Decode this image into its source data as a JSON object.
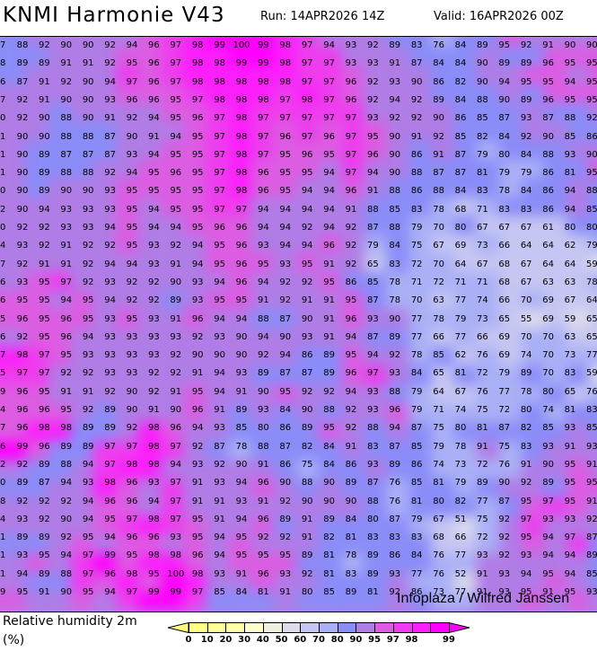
{
  "header": {
    "title": "KNMI Harmonie V43",
    "run": "Run: 14APR2026 14Z",
    "valid": "Valid: 16APR2026 00Z"
  },
  "map": {
    "variable": "Relative humidity 2m",
    "unit": "(%)",
    "watermark": "Infoplaza / Wilfred Janssen",
    "grid": [
      [
        "7",
        "88",
        "92",
        "90",
        "90",
        "92",
        "94",
        "96",
        "97",
        "98",
        "99",
        "100",
        "99",
        "98",
        "97",
        "94",
        "93",
        "92",
        "89",
        "83",
        "76",
        "84",
        "89",
        "95",
        "92",
        "91",
        "90",
        "90"
      ],
      [
        "8",
        "89",
        "89",
        "91",
        "91",
        "92",
        "95",
        "96",
        "97",
        "98",
        "98",
        "99",
        "99",
        "98",
        "97",
        "97",
        "93",
        "93",
        "91",
        "87",
        "84",
        "84",
        "90",
        "89",
        "89",
        "96",
        "95",
        "95"
      ],
      [
        "6",
        "87",
        "91",
        "92",
        "90",
        "94",
        "97",
        "96",
        "97",
        "98",
        "98",
        "98",
        "98",
        "98",
        "97",
        "97",
        "96",
        "92",
        "93",
        "90",
        "86",
        "82",
        "90",
        "94",
        "95",
        "95",
        "94",
        "95"
      ],
      [
        "7",
        "92",
        "91",
        "90",
        "90",
        "93",
        "96",
        "96",
        "95",
        "97",
        "98",
        "98",
        "98",
        "97",
        "98",
        "97",
        "96",
        "92",
        "94",
        "92",
        "89",
        "84",
        "88",
        "90",
        "89",
        "96",
        "95",
        "95"
      ],
      [
        "0",
        "92",
        "90",
        "88",
        "90",
        "91",
        "92",
        "94",
        "95",
        "96",
        "97",
        "98",
        "97",
        "97",
        "97",
        "97",
        "97",
        "93",
        "92",
        "92",
        "90",
        "86",
        "85",
        "87",
        "93",
        "87",
        "88",
        "92"
      ],
      [
        "1",
        "90",
        "90",
        "88",
        "88",
        "87",
        "90",
        "91",
        "94",
        "95",
        "97",
        "98",
        "97",
        "96",
        "97",
        "96",
        "97",
        "95",
        "90",
        "91",
        "92",
        "85",
        "82",
        "84",
        "92",
        "90",
        "85",
        "86"
      ],
      [
        "1",
        "90",
        "89",
        "87",
        "87",
        "87",
        "93",
        "94",
        "95",
        "95",
        "97",
        "98",
        "97",
        "95",
        "96",
        "95",
        "97",
        "96",
        "90",
        "86",
        "91",
        "87",
        "79",
        "80",
        "84",
        "88",
        "93",
        "90"
      ],
      [
        "1",
        "90",
        "89",
        "88",
        "88",
        "92",
        "94",
        "95",
        "96",
        "95",
        "97",
        "98",
        "96",
        "95",
        "95",
        "94",
        "97",
        "94",
        "90",
        "88",
        "87",
        "87",
        "81",
        "79",
        "79",
        "86",
        "81",
        "95"
      ],
      [
        "0",
        "90",
        "89",
        "90",
        "90",
        "93",
        "95",
        "95",
        "95",
        "95",
        "97",
        "98",
        "96",
        "95",
        "94",
        "94",
        "96",
        "91",
        "88",
        "86",
        "88",
        "84",
        "83",
        "78",
        "84",
        "86",
        "94",
        "88"
      ],
      [
        "2",
        "90",
        "94",
        "93",
        "93",
        "93",
        "95",
        "94",
        "95",
        "95",
        "97",
        "97",
        "94",
        "94",
        "94",
        "94",
        "91",
        "88",
        "85",
        "83",
        "78",
        "68",
        "71",
        "83",
        "83",
        "86",
        "94",
        "85"
      ],
      [
        "0",
        "92",
        "92",
        "93",
        "93",
        "94",
        "95",
        "94",
        "94",
        "95",
        "96",
        "96",
        "94",
        "94",
        "92",
        "94",
        "92",
        "87",
        "88",
        "79",
        "70",
        "80",
        "67",
        "67",
        "67",
        "61",
        "80",
        "80"
      ],
      [
        "4",
        "93",
        "92",
        "91",
        "92",
        "92",
        "95",
        "93",
        "92",
        "94",
        "95",
        "96",
        "93",
        "94",
        "94",
        "96",
        "92",
        "79",
        "84",
        "75",
        "67",
        "69",
        "73",
        "66",
        "64",
        "64",
        "62",
        "79"
      ],
      [
        "7",
        "92",
        "91",
        "91",
        "92",
        "94",
        "94",
        "93",
        "91",
        "94",
        "95",
        "96",
        "95",
        "93",
        "95",
        "91",
        "92",
        "65",
        "83",
        "72",
        "70",
        "64",
        "67",
        "68",
        "67",
        "64",
        "64",
        "59"
      ],
      [
        "6",
        "93",
        "95",
        "97",
        "92",
        "93",
        "92",
        "92",
        "90",
        "93",
        "94",
        "96",
        "94",
        "92",
        "92",
        "95",
        "86",
        "85",
        "78",
        "71",
        "72",
        "71",
        "71",
        "68",
        "67",
        "63",
        "63",
        "78"
      ],
      [
        "6",
        "95",
        "95",
        "94",
        "95",
        "94",
        "92",
        "92",
        "89",
        "93",
        "95",
        "95",
        "91",
        "92",
        "91",
        "91",
        "95",
        "87",
        "78",
        "70",
        "63",
        "77",
        "74",
        "66",
        "70",
        "69",
        "67",
        "64"
      ],
      [
        "5",
        "96",
        "95",
        "96",
        "95",
        "93",
        "95",
        "93",
        "91",
        "96",
        "94",
        "94",
        "88",
        "87",
        "90",
        "91",
        "96",
        "93",
        "90",
        "77",
        "78",
        "79",
        "73",
        "65",
        "55",
        "69",
        "59",
        "65"
      ],
      [
        "6",
        "92",
        "95",
        "96",
        "94",
        "93",
        "93",
        "93",
        "93",
        "92",
        "93",
        "90",
        "94",
        "90",
        "93",
        "91",
        "94",
        "87",
        "89",
        "77",
        "66",
        "77",
        "66",
        "69",
        "70",
        "70",
        "63",
        "65"
      ],
      [
        "7",
        "98",
        "97",
        "95",
        "93",
        "93",
        "93",
        "93",
        "92",
        "90",
        "90",
        "90",
        "92",
        "94",
        "86",
        "89",
        "95",
        "94",
        "92",
        "78",
        "85",
        "62",
        "76",
        "69",
        "74",
        "70",
        "73",
        "77"
      ],
      [
        "5",
        "97",
        "97",
        "92",
        "92",
        "93",
        "93",
        "92",
        "92",
        "91",
        "94",
        "93",
        "89",
        "87",
        "87",
        "89",
        "96",
        "97",
        "93",
        "84",
        "65",
        "81",
        "72",
        "79",
        "89",
        "70",
        "83",
        "59"
      ],
      [
        "9",
        "96",
        "95",
        "91",
        "91",
        "92",
        "90",
        "92",
        "91",
        "95",
        "94",
        "91",
        "90",
        "95",
        "92",
        "92",
        "94",
        "93",
        "88",
        "79",
        "64",
        "67",
        "76",
        "77",
        "78",
        "80",
        "65",
        "76"
      ],
      [
        "4",
        "96",
        "96",
        "95",
        "92",
        "89",
        "90",
        "91",
        "90",
        "96",
        "91",
        "89",
        "93",
        "84",
        "90",
        "88",
        "92",
        "93",
        "96",
        "79",
        "71",
        "74",
        "75",
        "72",
        "80",
        "74",
        "81",
        "83"
      ],
      [
        "7",
        "96",
        "98",
        "98",
        "89",
        "89",
        "92",
        "98",
        "96",
        "94",
        "93",
        "85",
        "80",
        "86",
        "89",
        "95",
        "92",
        "88",
        "94",
        "87",
        "75",
        "80",
        "81",
        "87",
        "82",
        "85",
        "93",
        "85"
      ],
      [
        "6",
        "99",
        "96",
        "89",
        "89",
        "97",
        "97",
        "98",
        "97",
        "92",
        "87",
        "78",
        "88",
        "87",
        "82",
        "84",
        "91",
        "83",
        "87",
        "85",
        "79",
        "78",
        "91",
        "75",
        "83",
        "93",
        "91",
        "93"
      ],
      [
        "2",
        "92",
        "89",
        "88",
        "94",
        "97",
        "98",
        "98",
        "94",
        "93",
        "92",
        "90",
        "91",
        "86",
        "75",
        "84",
        "86",
        "93",
        "89",
        "86",
        "74",
        "73",
        "72",
        "76",
        "91",
        "90",
        "95",
        "91"
      ],
      [
        "0",
        "89",
        "87",
        "94",
        "93",
        "98",
        "96",
        "93",
        "97",
        "91",
        "93",
        "94",
        "96",
        "90",
        "88",
        "90",
        "89",
        "87",
        "76",
        "85",
        "81",
        "79",
        "89",
        "90",
        "92",
        "89",
        "95",
        "95"
      ],
      [
        "8",
        "92",
        "92",
        "92",
        "94",
        "96",
        "96",
        "94",
        "97",
        "91",
        "91",
        "93",
        "91",
        "92",
        "90",
        "90",
        "90",
        "88",
        "76",
        "81",
        "80",
        "82",
        "77",
        "87",
        "95",
        "97",
        "95",
        "91"
      ],
      [
        "4",
        "93",
        "92",
        "90",
        "94",
        "95",
        "97",
        "98",
        "97",
        "95",
        "91",
        "94",
        "96",
        "89",
        "91",
        "89",
        "84",
        "80",
        "87",
        "79",
        "67",
        "51",
        "75",
        "92",
        "97",
        "93",
        "93",
        "92"
      ],
      [
        "1",
        "89",
        "89",
        "92",
        "95",
        "94",
        "96",
        "96",
        "93",
        "95",
        "94",
        "95",
        "92",
        "92",
        "91",
        "82",
        "81",
        "83",
        "83",
        "83",
        "68",
        "66",
        "72",
        "92",
        "95",
        "94",
        "97",
        "87"
      ],
      [
        "1",
        "93",
        "95",
        "94",
        "97",
        "99",
        "95",
        "98",
        "98",
        "96",
        "94",
        "95",
        "95",
        "95",
        "89",
        "81",
        "78",
        "89",
        "86",
        "84",
        "76",
        "77",
        "93",
        "92",
        "93",
        "94",
        "94",
        "89"
      ],
      [
        "1",
        "94",
        "89",
        "88",
        "97",
        "96",
        "98",
        "95",
        "100",
        "98",
        "93",
        "91",
        "96",
        "93",
        "92",
        "81",
        "83",
        "89",
        "93",
        "77",
        "76",
        "52",
        "91",
        "93",
        "94",
        "95",
        "94",
        "85"
      ],
      [
        "9",
        "95",
        "91",
        "90",
        "95",
        "94",
        "97",
        "99",
        "99",
        "97",
        "85",
        "84",
        "81",
        "91",
        "80",
        "85",
        "89",
        "81",
        "92",
        "86",
        "73",
        "77",
        "91",
        "93",
        "95",
        "91",
        "95",
        "93"
      ]
    ]
  },
  "legend": {
    "ticks": [
      "0",
      "10",
      "20",
      "30",
      "40",
      "50",
      "60",
      "70",
      "80",
      "90",
      "95",
      "97",
      "98",
      "99"
    ],
    "colors": [
      "#ffff88",
      "#ffff99",
      "#ffffaa",
      "#ffffcc",
      "#f0f0e0",
      "#dcdcec",
      "#c6c6f2",
      "#aab0f6",
      "#8a8cf8",
      "#b07ce6",
      "#dc5ce2",
      "#ee3cee",
      "#fc1efc",
      "#ff00ff"
    ],
    "below_color": "#ffff80",
    "above_color": "#ff00ff"
  }
}
